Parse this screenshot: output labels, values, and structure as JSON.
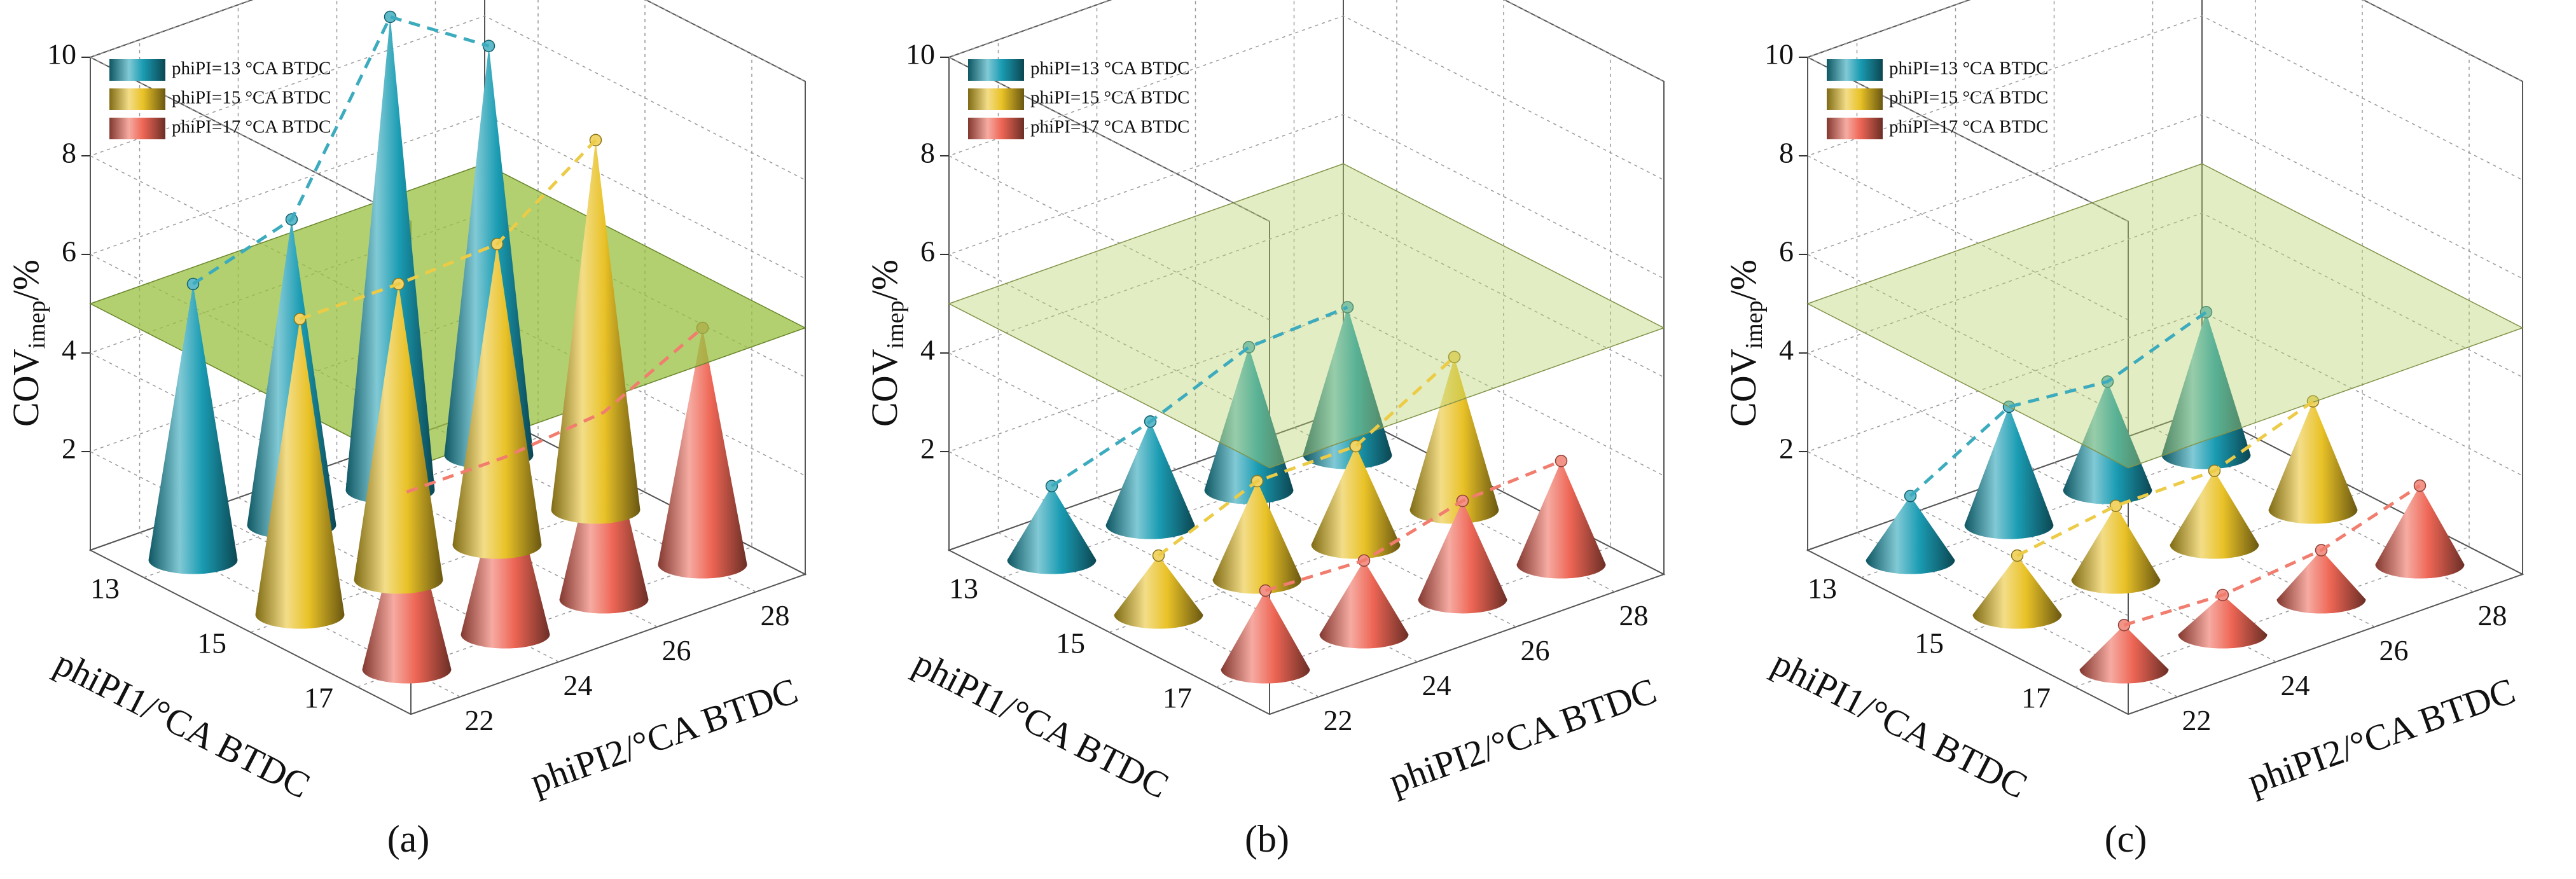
{
  "chart_data": [
    {
      "type": "cone3d",
      "panel_label": "(a)",
      "xlabel": "phiPI2/°CA BTDC",
      "ylabel": "phiPI1/°CA BTDC",
      "zlabel": "COV",
      "zlabel_sub": "imep",
      "zlabel_unit": "/%",
      "xticks": [
        22,
        24,
        26,
        28
      ],
      "xlim": [
        21,
        29
      ],
      "yticks": [
        13,
        15,
        17
      ],
      "ylim": [
        12,
        18
      ],
      "zlim": [
        0,
        10
      ],
      "zticks": [
        2,
        4,
        6,
        8,
        10
      ],
      "threshold": 5,
      "plane_color": "#98c03f",
      "plane_opacity": 0.75,
      "series": [
        {
          "name": "phiPI=13 °CA BTDC",
          "color": "#1a9cb3",
          "values": [
            5.6,
            6.2,
            9.6,
            8.3
          ]
        },
        {
          "name": "phiPI=15 °CA BTDC",
          "color": "#e9c227",
          "values": [
            6.0,
            6.0,
            6.1,
            7.5
          ]
        },
        {
          "name": "phiPI=17 °CA BTDC",
          "color": "#ee6655",
          "values": [
            3.6,
            3.6,
            3.8,
            4.8
          ]
        }
      ]
    },
    {
      "type": "cone3d",
      "panel_label": "(b)",
      "xlabel": "phiPI2/°CA BTDC",
      "ylabel": "phiPI1/°CA BTDC",
      "zlabel": "COV",
      "zlabel_sub": "imep",
      "zlabel_unit": "/%",
      "xticks": [
        22,
        24,
        26,
        28
      ],
      "xlim": [
        21,
        29
      ],
      "yticks": [
        13,
        15,
        17
      ],
      "ylim": [
        12,
        18
      ],
      "zlim": [
        0,
        10
      ],
      "zticks": [
        2,
        4,
        6,
        8,
        10
      ],
      "threshold": 5,
      "plane_color": "#b9d26a",
      "plane_opacity": 0.4,
      "series": [
        {
          "name": "phiPI=13 °CA BTDC",
          "color": "#1a9cb3",
          "values": [
            1.5,
            2.1,
            2.9,
            3.0
          ]
        },
        {
          "name": "phiPI=15 °CA BTDC",
          "color": "#e9c227",
          "values": [
            1.2,
            2.0,
            2.0,
            3.1
          ]
        },
        {
          "name": "phiPI=17 °CA BTDC",
          "color": "#ee6655",
          "values": [
            1.6,
            1.5,
            2.0,
            2.1
          ]
        }
      ]
    },
    {
      "type": "cone3d",
      "panel_label": "(c)",
      "xlabel": "phiPI2/°CA BTDC",
      "ylabel": "phiPI1/°CA BTDC",
      "zlabel": "COV",
      "zlabel_sub": "imep",
      "zlabel_unit": "/%",
      "xticks": [
        22,
        24,
        26,
        28
      ],
      "xlim": [
        21,
        29
      ],
      "yticks": [
        13,
        15,
        17
      ],
      "ylim": [
        12,
        18
      ],
      "zlim": [
        0,
        10
      ],
      "zticks": [
        2,
        4,
        6,
        8,
        10
      ],
      "threshold": 5,
      "plane_color": "#b9d26a",
      "plane_opacity": 0.4,
      "series": [
        {
          "name": "phiPI=13 °CA BTDC",
          "color": "#1a9cb3",
          "values": [
            1.3,
            2.4,
            2.2,
            2.9
          ]
        },
        {
          "name": "phiPI=15 °CA BTDC",
          "color": "#e9c227",
          "values": [
            1.2,
            1.5,
            1.5,
            2.2
          ]
        },
        {
          "name": "phiPI=17 °CA BTDC",
          "color": "#ee6655",
          "values": [
            0.9,
            0.8,
            1.0,
            1.6
          ]
        }
      ]
    }
  ]
}
